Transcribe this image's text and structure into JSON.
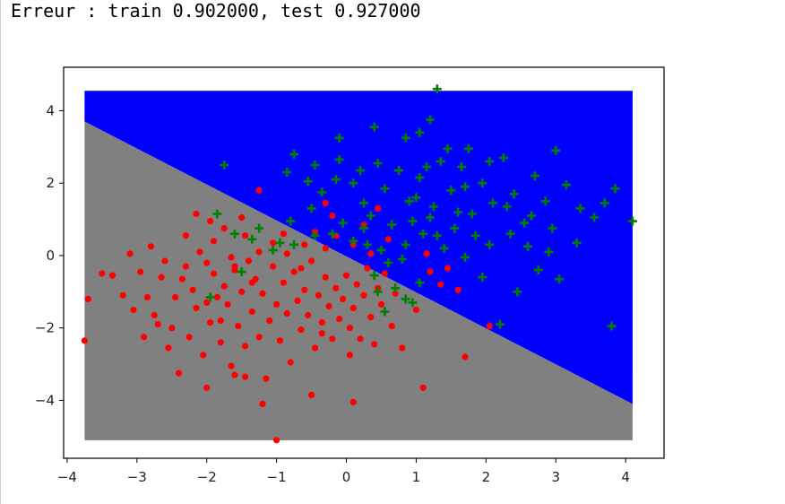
{
  "output": {
    "text": "Erreur : train 0.902000, test 0.927000"
  },
  "colors": {
    "region_class1": "#0000ff",
    "region_class0": "#808080",
    "points_class0": "#ff0000",
    "points_class1": "#008000"
  },
  "chart_data": {
    "type": "scatter",
    "title": "",
    "xlabel": "",
    "ylabel": "",
    "xlim": [
      -4.05,
      4.55
    ],
    "ylim": [
      -5.6,
      5.2
    ],
    "xticks": [
      -4,
      -3,
      -2,
      -1,
      0,
      1,
      2,
      3,
      4
    ],
    "yticks": [
      -4,
      -2,
      0,
      2,
      4
    ],
    "xtick_labels": [
      "−4",
      "−3",
      "−2",
      "−1",
      "0",
      "1",
      "2",
      "3",
      "4"
    ],
    "ytick_labels": [
      "−4",
      "−2",
      "0",
      "2",
      "4"
    ],
    "grid": false,
    "legend": "none",
    "decision_regions": {
      "x_range": [
        -3.75,
        4.1
      ],
      "y_range": [
        -5.1,
        4.55
      ],
      "boundary": [
        [
          -3.75,
          3.7
        ],
        [
          4.1,
          -4.1
        ]
      ],
      "upper_class": "class 1 (blue)",
      "lower_class": "class 0 (grey)"
    },
    "series": [
      {
        "marker": "dot",
        "color": "#ff0000",
        "points": [
          [
            -3.7,
            -1.2
          ],
          [
            -3.75,
            -2.35
          ],
          [
            -3.5,
            -0.5
          ],
          [
            -3.35,
            -0.55
          ],
          [
            -3.2,
            -1.1
          ],
          [
            -3.05,
            -1.5
          ],
          [
            -2.95,
            -0.45
          ],
          [
            -2.85,
            -1.15
          ],
          [
            -2.75,
            -1.65
          ],
          [
            -2.65,
            -0.6
          ],
          [
            -2.5,
            -2.0
          ],
          [
            -2.45,
            -1.15
          ],
          [
            -2.35,
            -0.65
          ],
          [
            -2.25,
            -2.25
          ],
          [
            -2.2,
            -0.95
          ],
          [
            -2.15,
            -1.45
          ],
          [
            -2.05,
            -2.75
          ],
          [
            -2.0,
            -0.2
          ],
          [
            -1.95,
            -1.85
          ],
          [
            -1.9,
            -0.5
          ],
          [
            -1.85,
            -1.15
          ],
          [
            -1.8,
            -2.4
          ],
          [
            -1.75,
            -0.85
          ],
          [
            -1.7,
            -1.35
          ],
          [
            -1.65,
            -3.05
          ],
          [
            -1.6,
            -0.4
          ],
          [
            -1.55,
            -1.95
          ],
          [
            -1.5,
            -1.0
          ],
          [
            -1.45,
            -2.5
          ],
          [
            -1.4,
            -0.15
          ],
          [
            -1.35,
            -1.55
          ],
          [
            -1.3,
            -0.65
          ],
          [
            -1.25,
            -2.25
          ],
          [
            -1.2,
            -1.05
          ],
          [
            -1.15,
            -3.4
          ],
          [
            -1.1,
            -1.8
          ],
          [
            -1.05,
            -0.3
          ],
          [
            -1.0,
            -1.35
          ],
          [
            -0.95,
            -2.35
          ],
          [
            -0.9,
            -0.75
          ],
          [
            -0.85,
            -1.6
          ],
          [
            -0.8,
            -2.95
          ],
          [
            -0.75,
            -0.45
          ],
          [
            -0.7,
            -1.25
          ],
          [
            -0.65,
            -2.05
          ],
          [
            -0.6,
            -0.95
          ],
          [
            -0.55,
            -1.65
          ],
          [
            -0.5,
            -0.15
          ],
          [
            -0.45,
            -2.55
          ],
          [
            -0.4,
            -1.1
          ],
          [
            -0.35,
            -1.85
          ],
          [
            -0.3,
            -0.6
          ],
          [
            -0.25,
            -1.4
          ],
          [
            -0.2,
            -2.3
          ],
          [
            -0.15,
            -0.9
          ],
          [
            -0.1,
            -1.75
          ],
          [
            -0.05,
            -1.2
          ],
          [
            0.0,
            -0.55
          ],
          [
            0.05,
            -2.0
          ],
          [
            0.1,
            -1.45
          ],
          [
            0.15,
            -0.8
          ],
          [
            0.2,
            -2.3
          ],
          [
            0.25,
            -1.1
          ],
          [
            0.3,
            -0.35
          ],
          [
            0.35,
            -1.7
          ],
          [
            0.4,
            -2.45
          ],
          [
            0.45,
            -0.9
          ],
          [
            0.5,
            -1.35
          ],
          [
            0.55,
            -0.5
          ],
          [
            0.65,
            -1.95
          ],
          [
            0.7,
            -1.05
          ],
          [
            0.8,
            -2.55
          ],
          [
            1.0,
            -1.5
          ],
          [
            1.1,
            -3.65
          ],
          [
            1.2,
            -0.45
          ],
          [
            1.35,
            -0.8
          ],
          [
            1.7,
            -2.8
          ],
          [
            2.05,
            -1.95
          ],
          [
            -3.1,
            0.05
          ],
          [
            -2.8,
            0.25
          ],
          [
            -2.6,
            -0.15
          ],
          [
            -2.3,
            0.55
          ],
          [
            -2.1,
            0.1
          ],
          [
            -1.9,
            0.4
          ],
          [
            -1.65,
            -0.05
          ],
          [
            -1.45,
            0.55
          ],
          [
            -1.25,
            0.1
          ],
          [
            -1.05,
            0.35
          ],
          [
            -0.85,
            0.05
          ],
          [
            -0.6,
            0.3
          ],
          [
            -0.45,
            0.65
          ],
          [
            -0.3,
            0.2
          ],
          [
            -0.15,
            0.55
          ],
          [
            0.1,
            0.3
          ],
          [
            0.25,
            0.85
          ],
          [
            0.35,
            0.05
          ],
          [
            -1.25,
            1.8
          ],
          [
            -0.3,
            1.45
          ],
          [
            0.6,
            0.45
          ],
          [
            1.15,
            0.05
          ],
          [
            -2.15,
            1.15
          ],
          [
            -1.95,
            0.95
          ],
          [
            -1.75,
            0.75
          ],
          [
            -1.5,
            1.05
          ],
          [
            -2.0,
            -3.65
          ],
          [
            -1.45,
            -3.35
          ],
          [
            -2.4,
            -3.25
          ],
          [
            -0.5,
            -3.85
          ],
          [
            0.1,
            -4.05
          ],
          [
            -1.2,
            -4.1
          ],
          [
            -1.0,
            -5.1
          ],
          [
            -1.35,
            -0.75
          ],
          [
            -2.0,
            -1.3
          ],
          [
            -1.8,
            -1.8
          ],
          [
            -1.6,
            -0.3
          ],
          [
            -0.65,
            -0.35
          ],
          [
            -0.35,
            -2.15
          ],
          [
            0.05,
            -2.75
          ],
          [
            -2.9,
            -2.25
          ],
          [
            -2.55,
            -2.55
          ],
          [
            -1.6,
            -3.3
          ],
          [
            1.6,
            -0.95
          ],
          [
            -0.9,
            0.6
          ],
          [
            -0.2,
            1.1
          ],
          [
            0.45,
            1.3
          ],
          [
            1.45,
            -0.35
          ],
          [
            -2.3,
            -0.3
          ],
          [
            -2.7,
            -1.9
          ]
        ]
      },
      {
        "marker": "plus",
        "color": "#008000",
        "points": [
          [
            1.3,
            4.6
          ],
          [
            1.2,
            3.75
          ],
          [
            0.4,
            3.55
          ],
          [
            0.85,
            3.25
          ],
          [
            1.05,
            3.4
          ],
          [
            -0.1,
            3.25
          ],
          [
            -0.75,
            2.8
          ],
          [
            -1.75,
            2.5
          ],
          [
            -0.85,
            2.3
          ],
          [
            -0.55,
            2.05
          ],
          [
            -0.1,
            2.65
          ],
          [
            0.1,
            2.0
          ],
          [
            0.25,
            1.45
          ],
          [
            0.55,
            1.85
          ],
          [
            0.75,
            2.35
          ],
          [
            0.9,
            1.5
          ],
          [
            1.05,
            2.15
          ],
          [
            1.2,
            1.05
          ],
          [
            1.35,
            2.6
          ],
          [
            1.5,
            1.8
          ],
          [
            1.65,
            2.45
          ],
          [
            1.8,
            1.15
          ],
          [
            1.95,
            2.0
          ],
          [
            2.1,
            1.45
          ],
          [
            2.25,
            2.7
          ],
          [
            2.4,
            1.7
          ],
          [
            2.55,
            0.9
          ],
          [
            2.7,
            2.2
          ],
          [
            2.85,
            1.5
          ],
          [
            3.0,
            2.9
          ],
          [
            3.15,
            1.95
          ],
          [
            3.35,
            1.3
          ],
          [
            3.55,
            1.05
          ],
          [
            3.7,
            1.45
          ],
          [
            3.85,
            1.85
          ],
          [
            4.1,
            0.95
          ],
          [
            3.8,
            -1.95
          ],
          [
            3.05,
            -0.65
          ],
          [
            2.75,
            -0.4
          ],
          [
            2.45,
            -1.0
          ],
          [
            2.2,
            -1.9
          ],
          [
            1.95,
            -0.6
          ],
          [
            1.7,
            -0.05
          ],
          [
            1.4,
            0.2
          ],
          [
            1.1,
            0.6
          ],
          [
            0.85,
            0.3
          ],
          [
            0.6,
            -0.2
          ],
          [
            0.4,
            -0.55
          ],
          [
            0.25,
            0.75
          ],
          [
            0.1,
            0.4
          ],
          [
            -0.05,
            0.9
          ],
          [
            -0.2,
            0.6
          ],
          [
            -0.45,
            0.55
          ],
          [
            -0.75,
            0.3
          ],
          [
            -1.05,
            0.15
          ],
          [
            -1.35,
            0.45
          ],
          [
            -1.6,
            0.6
          ],
          [
            -1.85,
            1.15
          ],
          [
            -1.95,
            -1.15
          ],
          [
            -1.5,
            -0.45
          ],
          [
            -1.25,
            0.75
          ],
          [
            -0.95,
            0.35
          ],
          [
            -0.8,
            0.95
          ],
          [
            -0.5,
            1.3
          ],
          [
            -0.35,
            1.75
          ],
          [
            0.35,
            1.1
          ],
          [
            0.65,
            0.85
          ],
          [
            0.95,
            0.95
          ],
          [
            1.25,
            1.35
          ],
          [
            1.55,
            0.75
          ],
          [
            1.85,
            0.55
          ],
          [
            2.05,
            0.3
          ],
          [
            2.35,
            0.6
          ],
          [
            2.65,
            1.1
          ],
          [
            2.95,
            0.75
          ],
          [
            3.3,
            0.35
          ],
          [
            0.45,
            -1.0
          ],
          [
            0.55,
            -1.55
          ],
          [
            0.7,
            -0.9
          ],
          [
            0.85,
            -1.2
          ],
          [
            1.05,
            -0.75
          ],
          [
            0.95,
            -1.3
          ],
          [
            0.8,
            -0.1
          ],
          [
            0.5,
            0.15
          ],
          [
            0.3,
            0.3
          ],
          [
            1.6,
            1.2
          ],
          [
            1.7,
            1.9
          ],
          [
            2.3,
            1.35
          ],
          [
            2.6,
            0.25
          ],
          [
            2.9,
            0.1
          ],
          [
            1.0,
            1.6
          ],
          [
            1.15,
            2.45
          ],
          [
            1.3,
            0.55
          ],
          [
            1.45,
            2.95
          ],
          [
            1.75,
            2.95
          ],
          [
            0.45,
            2.55
          ],
          [
            0.2,
            2.35
          ],
          [
            -0.15,
            2.1
          ],
          [
            -0.45,
            2.5
          ],
          [
            2.05,
            2.6
          ]
        ]
      }
    ]
  }
}
